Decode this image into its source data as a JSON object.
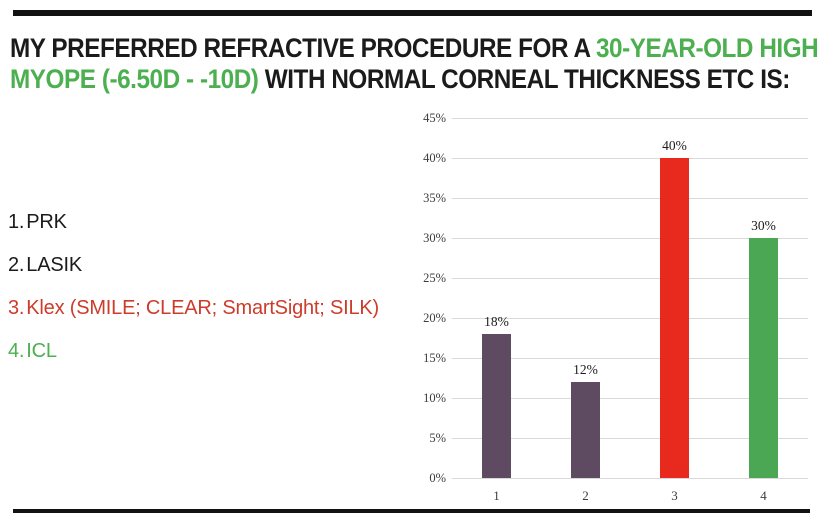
{
  "title": {
    "lines": [
      {
        "segments": [
          {
            "text": "MY PREFERRED REFRACTIVE PROCEDURE FOR A  ",
            "color": "#1b1b1b"
          },
          {
            "text": "30-YEAR-OLD HIGH",
            "color": "#4caf50"
          }
        ]
      },
      {
        "segments": [
          {
            "text": "MYOPE (-6.50D - -10D)",
            "color": "#4caf50"
          },
          {
            "text": " WITH NORMAL CORNEAL THICKNESS ETC IS:",
            "color": "#1b1b1b"
          }
        ]
      }
    ]
  },
  "options": [
    {
      "number": "1.",
      "label": "PRK",
      "color": "#1b1b1b"
    },
    {
      "number": "2.",
      "label": "LASIK",
      "color": "#1b1b1b"
    },
    {
      "number": "3.",
      "label": "Klex (SMILE; CLEAR; SmartSight; SILK)",
      "color": "#cd3c2b"
    },
    {
      "number": "4.",
      "label": "ICL",
      "color": "#4caf50"
    }
  ],
  "chart_data": {
    "type": "bar",
    "categories": [
      "1",
      "2",
      "3",
      "4"
    ],
    "values": [
      18,
      12,
      40,
      30
    ],
    "value_labels": [
      "18%",
      "12%",
      "40%",
      "30%"
    ],
    "bar_colors": [
      "#5e4a61",
      "#5e4a61",
      "#e8291d",
      "#4ba754"
    ],
    "title": "",
    "xlabel": "",
    "ylabel": "",
    "ylim": [
      0,
      45
    ],
    "ytick_step": 5,
    "ytick_suffix": "%",
    "grid": true,
    "grid_color": "#d9d9d9",
    "legend": false
  },
  "decor": {
    "rule_color": "#121212"
  }
}
